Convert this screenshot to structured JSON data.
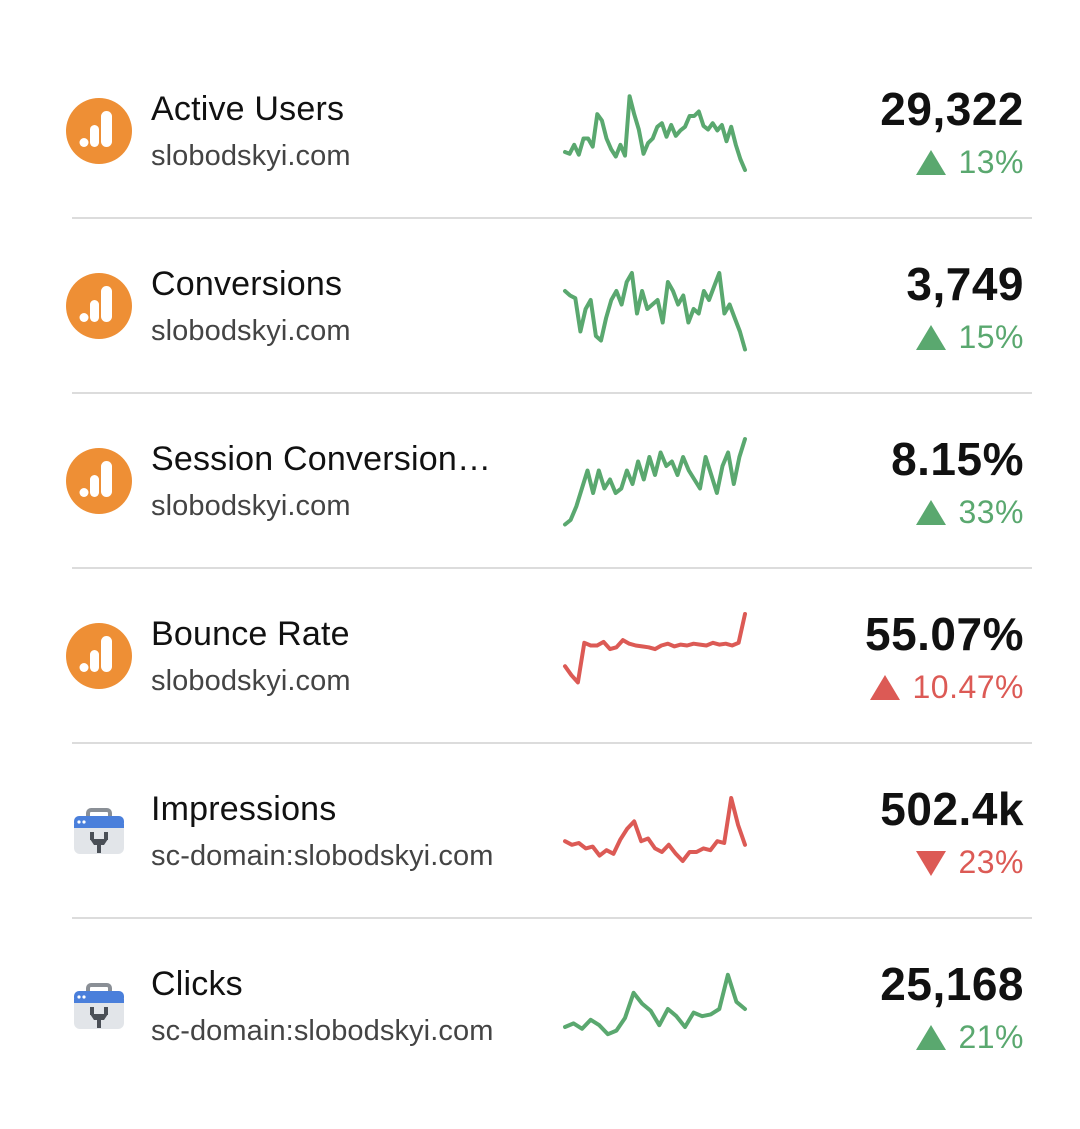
{
  "colors": {
    "positive": "#5aa86f",
    "negative": "#dc5a55",
    "analytics_orange": "#ee8f35"
  },
  "metrics": [
    {
      "title": "Active Users",
      "source": "slobodskyi.com",
      "source_icon": "google-analytics-icon",
      "value": "29,322",
      "change": "13%",
      "direction": "up",
      "trend": "positive",
      "sparkline": [
        0.7,
        0.72,
        0.62,
        0.73,
        0.55,
        0.55,
        0.64,
        0.28,
        0.35,
        0.55,
        0.67,
        0.75,
        0.62,
        0.74,
        0.08,
        0.28,
        0.45,
        0.72,
        0.6,
        0.55,
        0.42,
        0.38,
        0.53,
        0.4,
        0.52,
        0.46,
        0.42,
        0.3,
        0.3,
        0.25,
        0.41,
        0.45,
        0.38,
        0.46,
        0.4,
        0.58,
        0.42,
        0.62,
        0.78,
        0.9
      ]
    },
    {
      "title": "Conversions",
      "source": "slobodskyi.com",
      "source_icon": "google-analytics-icon",
      "value": "3,749",
      "change": "15%",
      "direction": "up",
      "trend": "positive",
      "sparkline": [
        0.3,
        0.35,
        0.38,
        0.75,
        0.5,
        0.4,
        0.8,
        0.85,
        0.6,
        0.4,
        0.3,
        0.45,
        0.2,
        0.1,
        0.55,
        0.3,
        0.5,
        0.45,
        0.4,
        0.65,
        0.2,
        0.3,
        0.45,
        0.35,
        0.65,
        0.5,
        0.55,
        0.3,
        0.4,
        0.25,
        0.1,
        0.55,
        0.45,
        0.6,
        0.75,
        0.95
      ]
    },
    {
      "title": "Session Conversion…",
      "source": "slobodskyi.com",
      "source_icon": "google-analytics-icon",
      "value": "8.15%",
      "change": "33%",
      "direction": "up",
      "trend": "positive",
      "sparkline": [
        0.95,
        0.9,
        0.75,
        0.55,
        0.35,
        0.6,
        0.35,
        0.55,
        0.45,
        0.6,
        0.55,
        0.35,
        0.5,
        0.25,
        0.45,
        0.2,
        0.4,
        0.15,
        0.3,
        0.25,
        0.4,
        0.2,
        0.35,
        0.45,
        0.55,
        0.2,
        0.4,
        0.6,
        0.3,
        0.15,
        0.5,
        0.2,
        0.0
      ]
    },
    {
      "title": "Bounce Rate",
      "source": "slobodskyi.com",
      "source_icon": "google-analytics-icon",
      "value": "55.07%",
      "change": "10.47%",
      "direction": "up",
      "trend": "negative",
      "sparkline": [
        0.58,
        0.68,
        0.76,
        0.32,
        0.35,
        0.35,
        0.31,
        0.39,
        0.37,
        0.29,
        0.33,
        0.35,
        0.36,
        0.37,
        0.39,
        0.35,
        0.33,
        0.36,
        0.34,
        0.35,
        0.33,
        0.34,
        0.35,
        0.32,
        0.34,
        0.33,
        0.35,
        0.32,
        0.0
      ]
    },
    {
      "title": "Impressions",
      "source": "sc-domain:slobodskyi.com",
      "source_icon": "search-console-icon",
      "value": "502.4k",
      "change": "23%",
      "direction": "down",
      "trend": "negative",
      "sparkline": [
        0.58,
        0.62,
        0.6,
        0.66,
        0.64,
        0.74,
        0.68,
        0.72,
        0.56,
        0.44,
        0.36,
        0.58,
        0.55,
        0.66,
        0.7,
        0.62,
        0.72,
        0.8,
        0.7,
        0.7,
        0.66,
        0.68,
        0.58,
        0.6,
        0.1,
        0.4,
        0.62
      ]
    },
    {
      "title": "Clicks",
      "source": "sc-domain:slobodskyi.com",
      "source_icon": "search-console-icon",
      "value": "25,168",
      "change": "21%",
      "direction": "up",
      "trend": "positive",
      "sparkline": [
        0.7,
        0.66,
        0.72,
        0.62,
        0.68,
        0.78,
        0.74,
        0.6,
        0.32,
        0.44,
        0.52,
        0.68,
        0.5,
        0.58,
        0.7,
        0.54,
        0.58,
        0.56,
        0.5,
        0.12,
        0.42,
        0.5
      ]
    }
  ]
}
